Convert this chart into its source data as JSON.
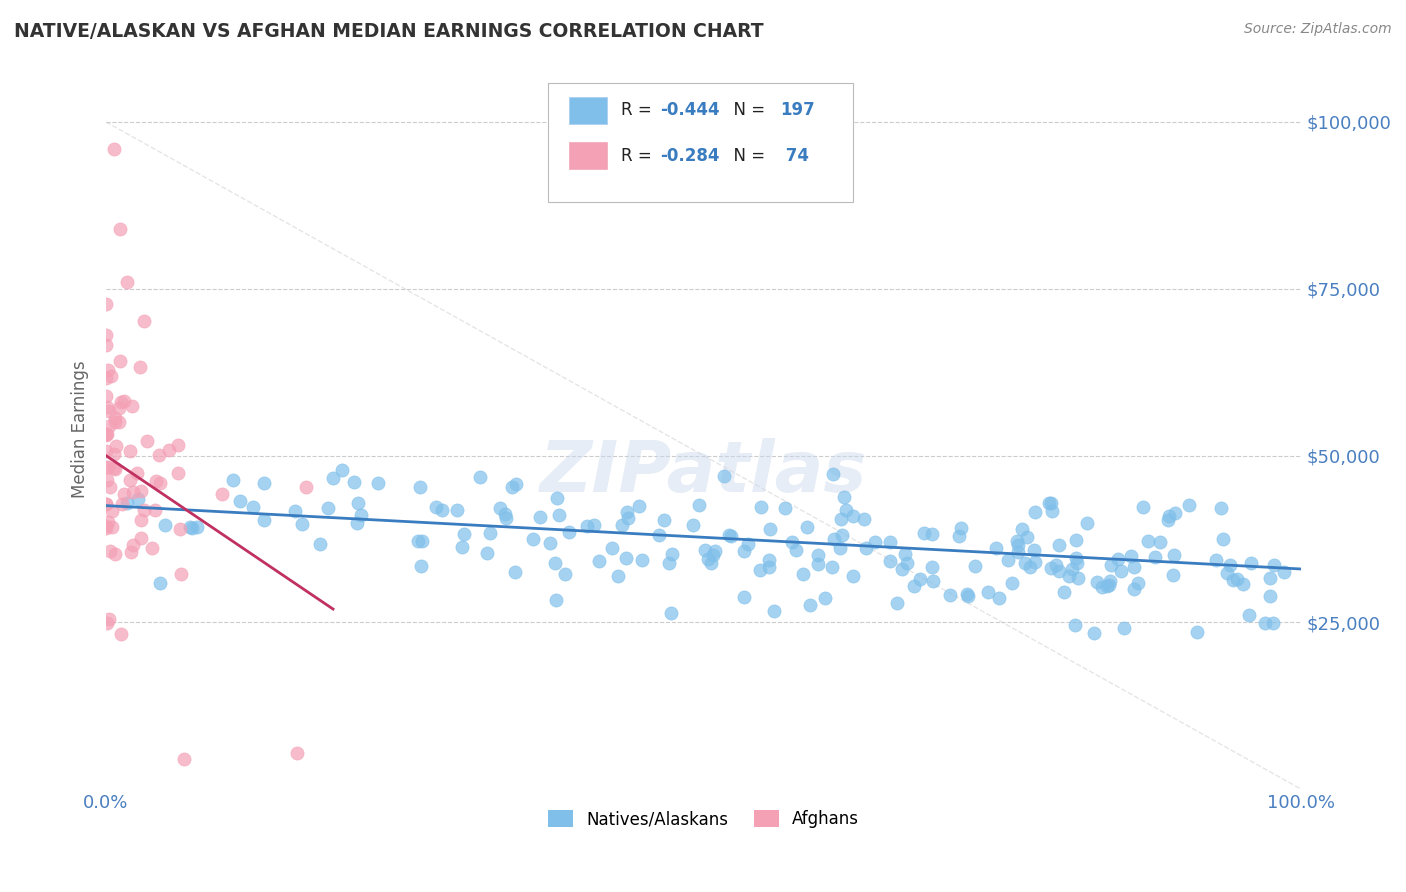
{
  "title": "NATIVE/ALASKAN VS AFGHAN MEDIAN EARNINGS CORRELATION CHART",
  "source": "Source: ZipAtlas.com",
  "ylabel": "Median Earnings",
  "watermark": "ZIPatlas",
  "bg_color": "#ffffff",
  "blue_color": "#7fbfea",
  "pink_color": "#f4a0b5",
  "blue_line_color": "#3a7cc0",
  "pink_line_color": "#c03060",
  "diag_line_color": "#cccccc",
  "axis_label_color": "#4a7fc0",
  "title_color": "#333333",
  "source_color": "#888888",
  "legend_text_color": "#222222",
  "legend_value_color": "#3a7cc0",
  "legend_r1": "-0.444",
  "legend_n1": "197",
  "legend_r2": "-0.284",
  "legend_n2": " 74",
  "ytick_labels": [
    "$25,000",
    "$50,000",
    "$75,000",
    "$100,000"
  ],
  "ytick_values": [
    25000,
    50000,
    75000,
    100000
  ],
  "xlim": [
    0,
    1.0
  ],
  "ylim": [
    0,
    108000
  ],
  "blue_trend": [
    42500,
    33000
  ],
  "pink_trend_x": [
    0.0,
    0.19
  ],
  "pink_trend_y": [
    50000,
    27000
  ]
}
